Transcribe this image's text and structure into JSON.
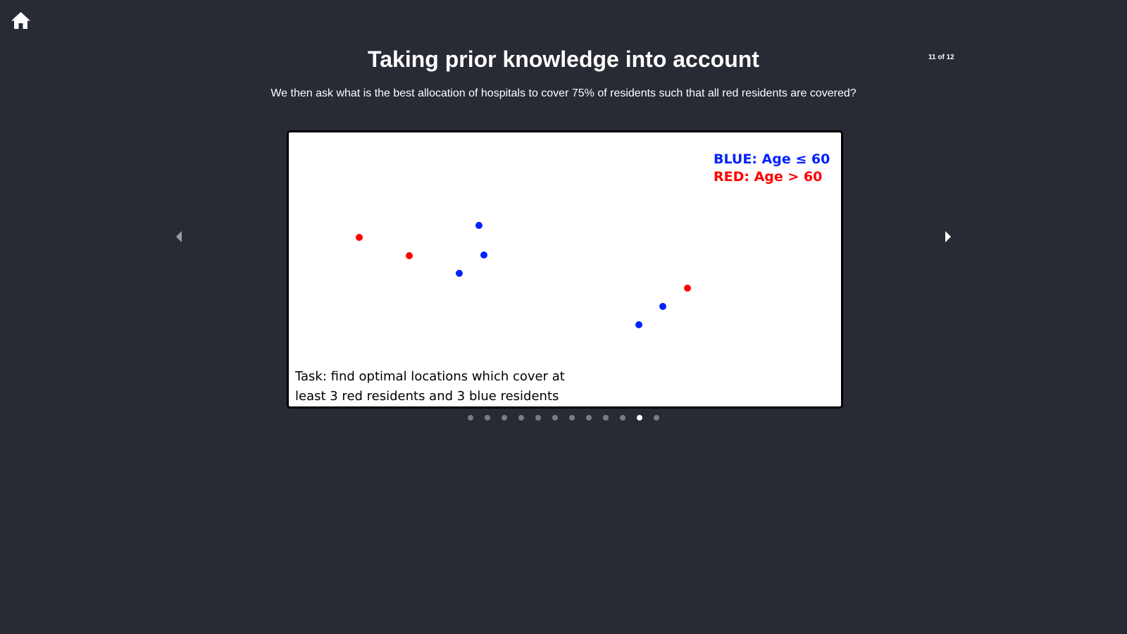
{
  "nav": {
    "home_icon": "home-icon",
    "prev_icon": "caret-left-icon",
    "next_icon": "caret-right-icon"
  },
  "slide": {
    "title": "Taking prior knowledge into account",
    "counter": "11 of 12",
    "subtitle": "We then ask what is the best allocation of hospitals to cover 75% of residents such that all red residents are covered?",
    "current_index": 11,
    "total": 12
  },
  "figure": {
    "legend_blue": "BLUE: Age ≤ 60",
    "legend_red": "RED: Age > 60",
    "task_line1": "Task: find optimal locations which cover at",
    "task_line2": "least 3 red residents and 3 blue residents",
    "colors": {
      "blue": "#0022ff",
      "red": "#ff0000"
    },
    "residents": [
      {
        "group": "red"
      },
      {
        "group": "red"
      },
      {
        "group": "blue"
      },
      {
        "group": "blue"
      },
      {
        "group": "blue"
      },
      {
        "group": "red"
      },
      {
        "group": "blue"
      },
      {
        "group": "blue"
      }
    ]
  },
  "pagination": {
    "count": 12,
    "active": 11
  }
}
